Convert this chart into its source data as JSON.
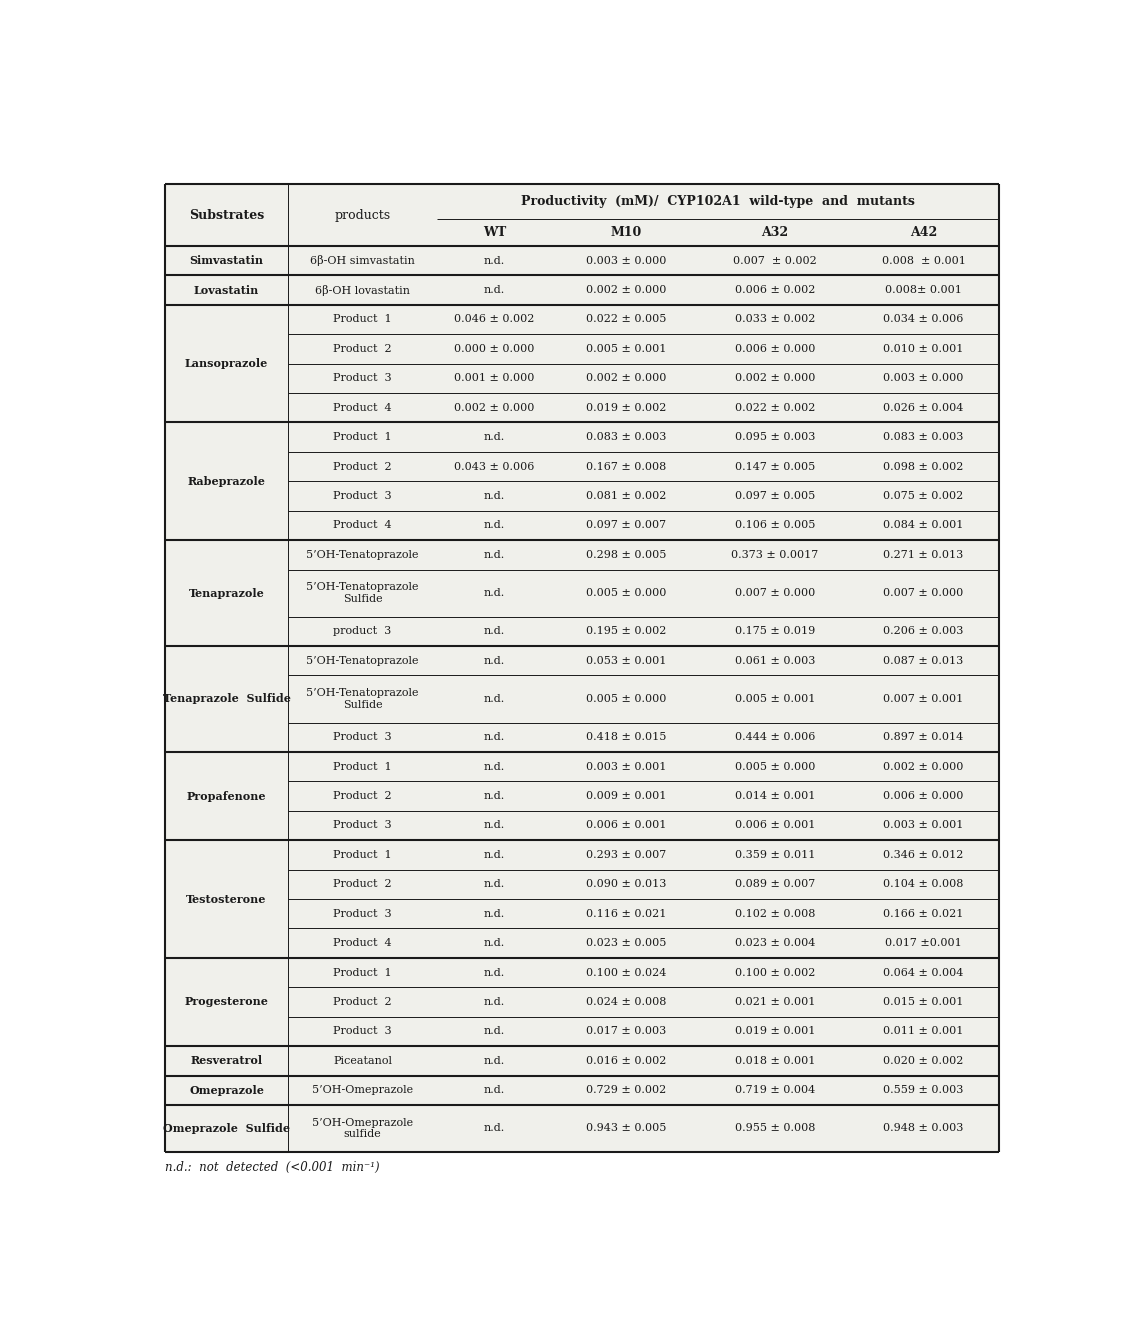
{
  "title": "Productivity  (mM)/  CYP102A1  wild-type  and  mutants",
  "col_headers": [
    "Substrates",
    "products",
    "WT",
    "M10",
    "A32",
    "A42"
  ],
  "rows": [
    {
      "substrate": "Simvastatin",
      "product": "6β-OH simvastatin",
      "wt": "n.d.",
      "m10": "0.003 ± 0.000",
      "a32": "0.007  ± 0.002",
      "a42": "0.008  ± 0.001"
    },
    {
      "substrate": "Lovastatin",
      "product": "6β-OH lovastatin",
      "wt": "n.d.",
      "m10": "0.002 ± 0.000",
      "a32": "0.006 ± 0.002",
      "a42": "0.008± 0.001"
    },
    {
      "substrate": "Lansoprazole",
      "product": "Product  1",
      "wt": "0.046 ± 0.002",
      "m10": "0.022 ± 0.005",
      "a32": "0.033 ± 0.002",
      "a42": "0.034 ± 0.006"
    },
    {
      "substrate": "",
      "product": "Product  2",
      "wt": "0.000 ± 0.000",
      "m10": "0.005 ± 0.001",
      "a32": "0.006 ± 0.000",
      "a42": "0.010 ± 0.001"
    },
    {
      "substrate": "",
      "product": "Product  3",
      "wt": "0.001 ± 0.000",
      "m10": "0.002 ± 0.000",
      "a32": "0.002 ± 0.000",
      "a42": "0.003 ± 0.000"
    },
    {
      "substrate": "",
      "product": "Product  4",
      "wt": "0.002 ± 0.000",
      "m10": "0.019 ± 0.002",
      "a32": "0.022 ± 0.002",
      "a42": "0.026 ± 0.004"
    },
    {
      "substrate": "Rabeprazole",
      "product": "Product  1",
      "wt": "n.d.",
      "m10": "0.083 ± 0.003",
      "a32": "0.095 ± 0.003",
      "a42": "0.083 ± 0.003"
    },
    {
      "substrate": "",
      "product": "Product  2",
      "wt": "0.043 ± 0.006",
      "m10": "0.167 ± 0.008",
      "a32": "0.147 ± 0.005",
      "a42": "0.098 ± 0.002"
    },
    {
      "substrate": "",
      "product": "Product  3",
      "wt": "n.d.",
      "m10": "0.081 ± 0.002",
      "a32": "0.097 ± 0.005",
      "a42": "0.075 ± 0.002"
    },
    {
      "substrate": "",
      "product": "Product  4",
      "wt": "n.d.",
      "m10": "0.097 ± 0.007",
      "a32": "0.106 ± 0.005",
      "a42": "0.084 ± 0.001"
    },
    {
      "substrate": "Tenaprazole",
      "product": "5’OH-Tenatoprazole",
      "wt": "n.d.",
      "m10": "0.298 ± 0.005",
      "a32": "0.373 ± 0.0017",
      "a42": "0.271 ± 0.013"
    },
    {
      "substrate": "",
      "product": "5’OH-Tenatoprazole\nSulfide",
      "wt": "n.d.",
      "m10": "0.005 ± 0.000",
      "a32": "0.007 ± 0.000",
      "a42": "0.007 ± 0.000"
    },
    {
      "substrate": "",
      "product": "product  3",
      "wt": "n.d.",
      "m10": "0.195 ± 0.002",
      "a32": "0.175 ± 0.019",
      "a42": "0.206 ± 0.003"
    },
    {
      "substrate": "Tenaprazole  Sulfide",
      "product": "5’OH-Tenatoprazole",
      "wt": "n.d.",
      "m10": "0.053 ± 0.001",
      "a32": "0.061 ± 0.003",
      "a42": "0.087 ± 0.013"
    },
    {
      "substrate": "",
      "product": "5’OH-Tenatoprazole\nSulfide",
      "wt": "n.d.",
      "m10": "0.005 ± 0.000",
      "a32": "0.005 ± 0.001",
      "a42": "0.007 ± 0.001"
    },
    {
      "substrate": "",
      "product": "Product  3",
      "wt": "n.d.",
      "m10": "0.418 ± 0.015",
      "a32": "0.444 ± 0.006",
      "a42": "0.897 ± 0.014"
    },
    {
      "substrate": "Propafenone",
      "product": "Product  1",
      "wt": "n.d.",
      "m10": "0.003 ± 0.001",
      "a32": "0.005 ± 0.000",
      "a42": "0.002 ± 0.000"
    },
    {
      "substrate": "",
      "product": "Product  2",
      "wt": "n.d.",
      "m10": "0.009 ± 0.001",
      "a32": "0.014 ± 0.001",
      "a42": "0.006 ± 0.000"
    },
    {
      "substrate": "",
      "product": "Product  3",
      "wt": "n.d.",
      "m10": "0.006 ± 0.001",
      "a32": "0.006 ± 0.001",
      "a42": "0.003 ± 0.001"
    },
    {
      "substrate": "Testosterone",
      "product": "Product  1",
      "wt": "n.d.",
      "m10": "0.293 ± 0.007",
      "a32": "0.359 ± 0.011",
      "a42": "0.346 ± 0.012"
    },
    {
      "substrate": "",
      "product": "Product  2",
      "wt": "n.d.",
      "m10": "0.090 ± 0.013",
      "a32": "0.089 ± 0.007",
      "a42": "0.104 ± 0.008"
    },
    {
      "substrate": "",
      "product": "Product  3",
      "wt": "n.d.",
      "m10": "0.116 ± 0.021",
      "a32": "0.102 ± 0.008",
      "a42": "0.166 ± 0.021"
    },
    {
      "substrate": "",
      "product": "Product  4",
      "wt": "n.d.",
      "m10": "0.023 ± 0.005",
      "a32": "0.023 ± 0.004",
      "a42": "0.017 ±0.001"
    },
    {
      "substrate": "Progesterone",
      "product": "Product  1",
      "wt": "n.d.",
      "m10": "0.100 ± 0.024",
      "a32": "0.100 ± 0.002",
      "a42": "0.064 ± 0.004"
    },
    {
      "substrate": "",
      "product": "Product  2",
      "wt": "n.d.",
      "m10": "0.024 ± 0.008",
      "a32": "0.021 ± 0.001",
      "a42": "0.015 ± 0.001"
    },
    {
      "substrate": "",
      "product": "Product  3",
      "wt": "n.d.",
      "m10": "0.017 ± 0.003",
      "a32": "0.019 ± 0.001",
      "a42": "0.011 ± 0.001"
    },
    {
      "substrate": "Resveratrol",
      "product": "Piceatanol",
      "wt": "n.d.",
      "m10": "0.016 ± 0.002",
      "a32": "0.018 ± 0.001",
      "a42": "0.020 ± 0.002"
    },
    {
      "substrate": "Omeprazole",
      "product": "5’OH-Omeprazole",
      "wt": "n.d.",
      "m10": "0.729 ± 0.002",
      "a32": "0.719 ± 0.004",
      "a42": "0.559 ± 0.003"
    },
    {
      "substrate": "Omeprazole  Sulfide",
      "product": "5’OH-Omeprazole\nsulfide",
      "wt": "n.d.",
      "m10": "0.943 ± 0.005",
      "a32": "0.955 ± 0.008",
      "a42": "0.948 ± 0.003"
    }
  ],
  "footnote": "n.d.:  not  detected  (<0.001  min⁻¹)",
  "bg_color": "#f0f0eb",
  "thick_lw": 1.5,
  "thin_lw": 0.7,
  "font_size_header": 9,
  "font_size_data": 8,
  "col_props": [
    0.148,
    0.178,
    0.138,
    0.178,
    0.178,
    0.178
  ]
}
